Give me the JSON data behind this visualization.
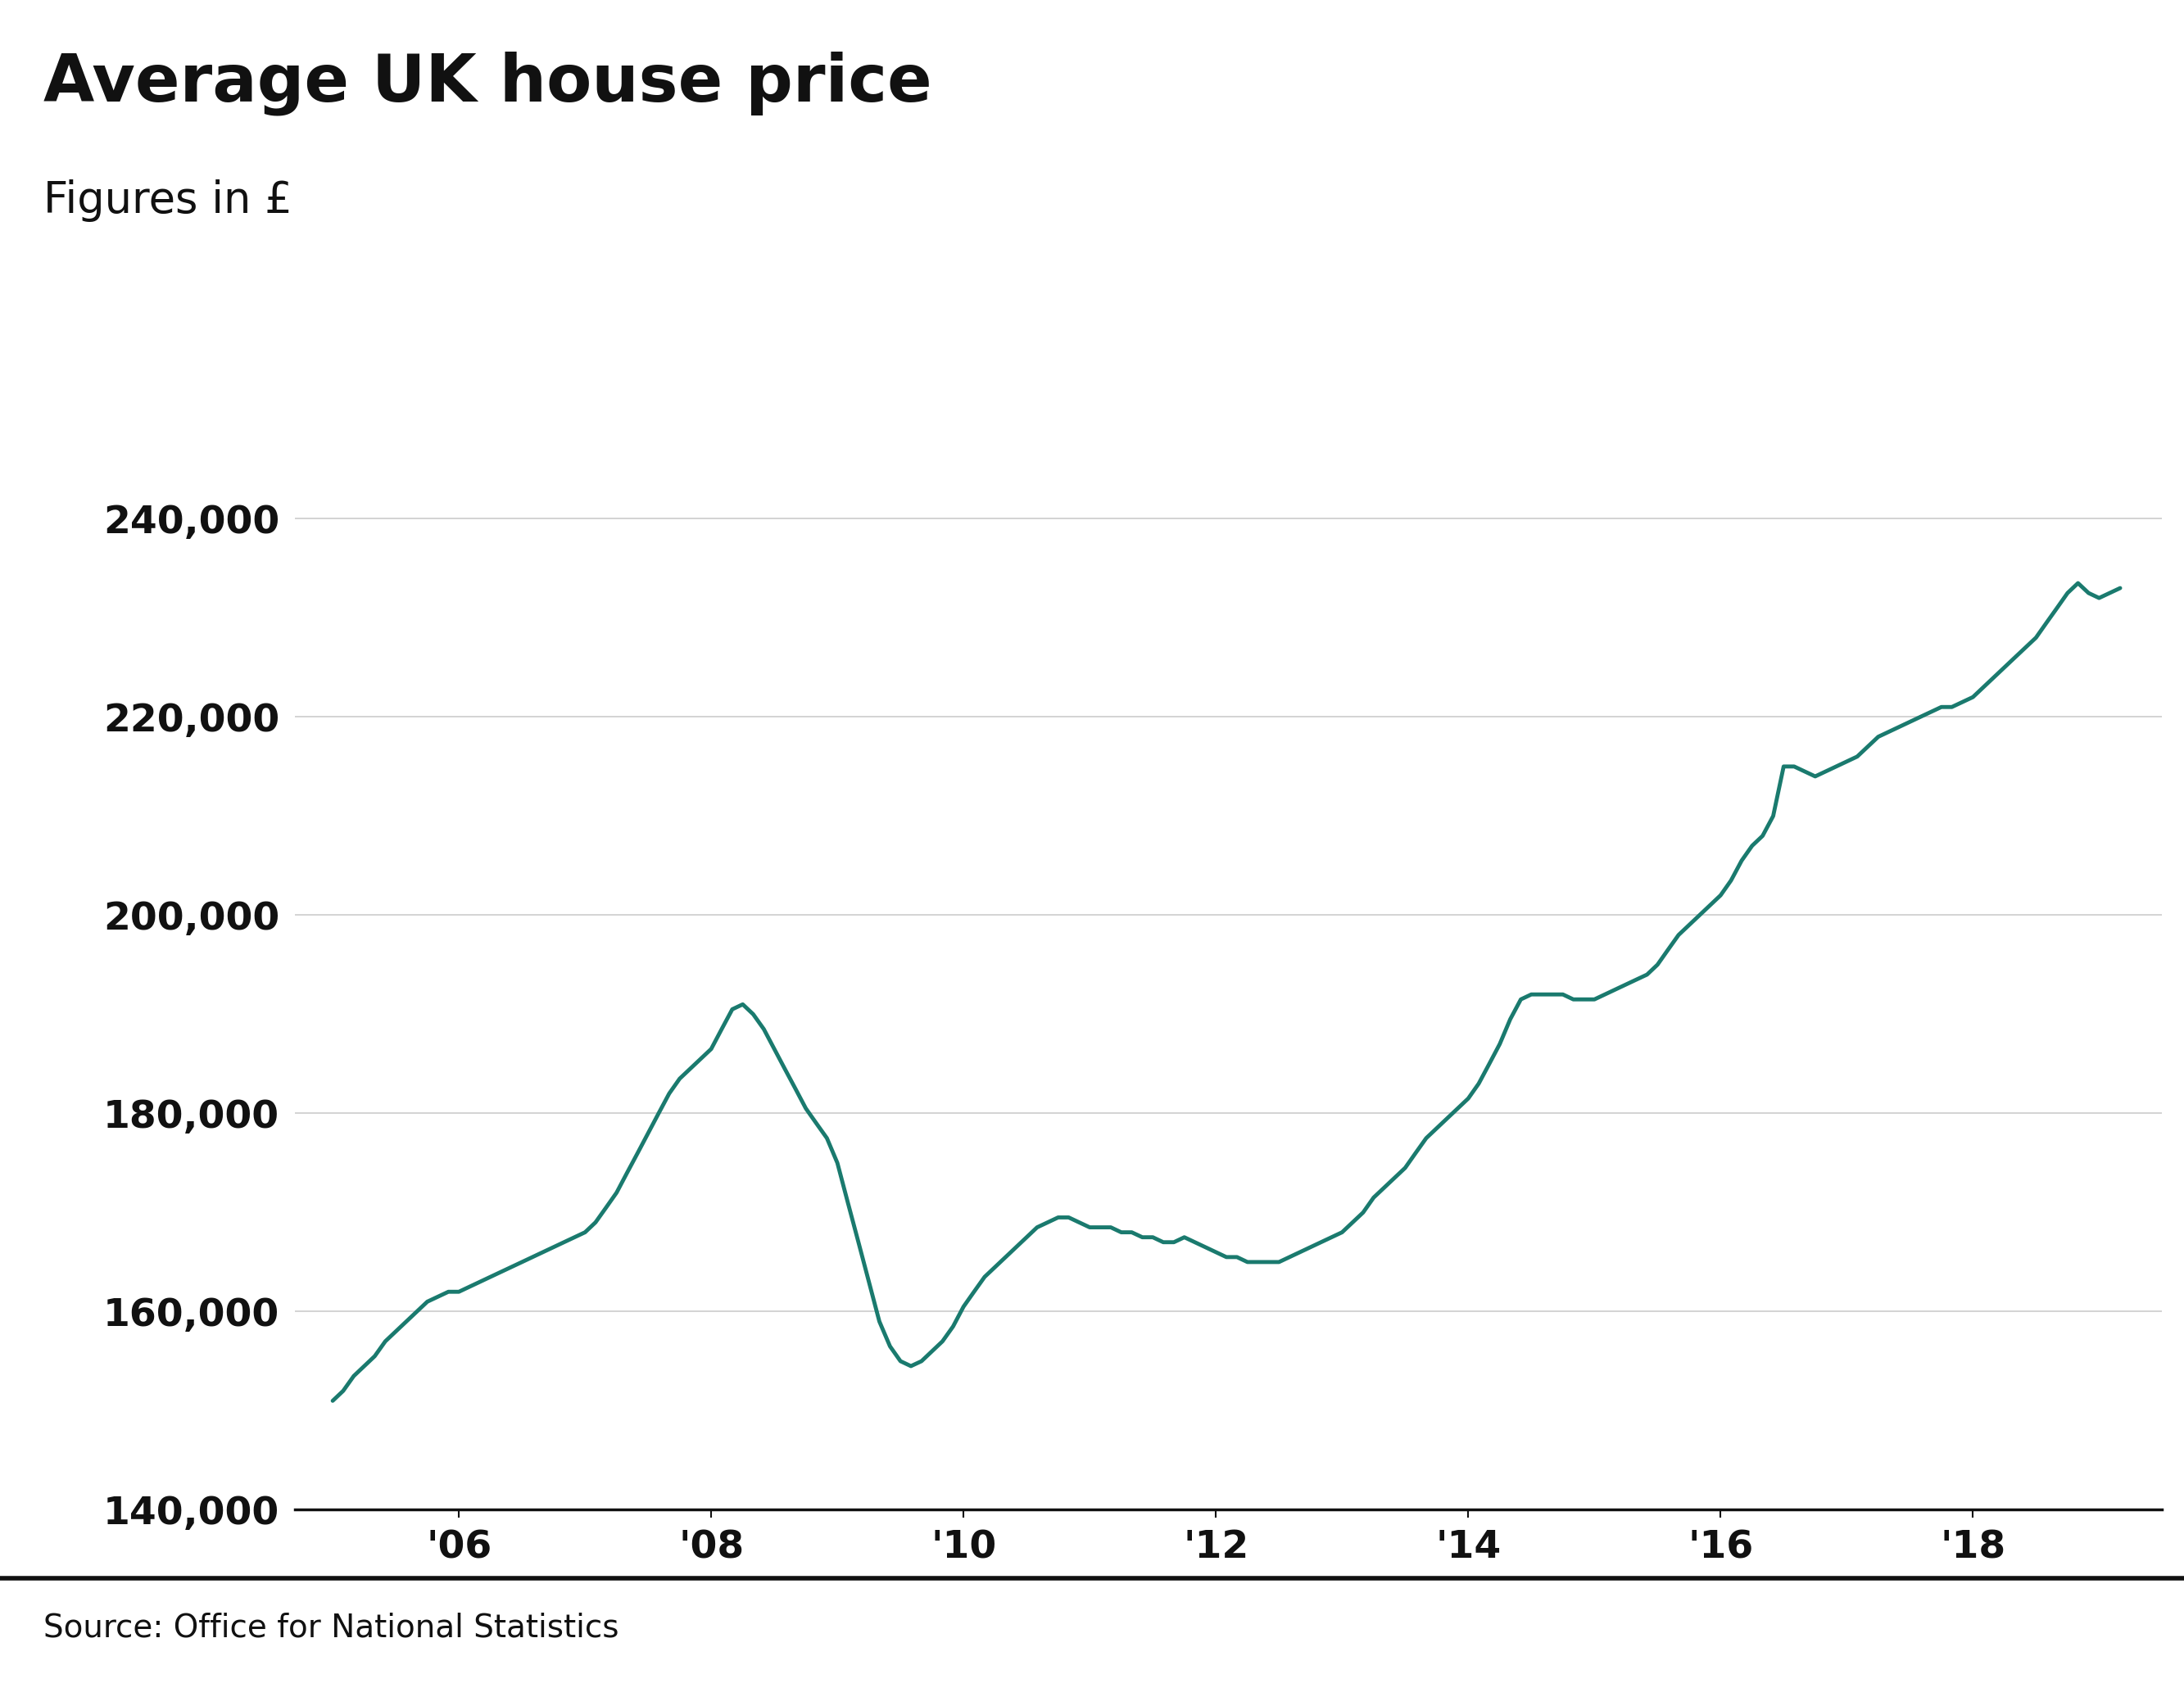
{
  "title": "Average UK house price",
  "subtitle": "Figures in £",
  "line_color": "#1a7a6e",
  "background_color": "#ffffff",
  "source_text": "Source: Office for National Statistics",
  "ylim": [
    140000,
    245000
  ],
  "yticks": [
    140000,
    160000,
    180000,
    200000,
    220000,
    240000
  ],
  "ytick_labels": [
    "140,000",
    "160,000",
    "180,000",
    "200,000",
    "220,000",
    "240,000"
  ],
  "xtick_labels": [
    "'06",
    "'08",
    "'10",
    "'12",
    "'14",
    "'16",
    "'18"
  ],
  "title_fontsize": 58,
  "subtitle_fontsize": 38,
  "tick_fontsize": 34,
  "source_fontsize": 28,
  "line_width": 3.5,
  "grid_color": "#cccccc",
  "axis_color": "#111111",
  "dates": [
    2005.0,
    2005.083,
    2005.167,
    2005.25,
    2005.333,
    2005.417,
    2005.5,
    2005.583,
    2005.667,
    2005.75,
    2005.833,
    2005.917,
    2006.0,
    2006.083,
    2006.167,
    2006.25,
    2006.333,
    2006.417,
    2006.5,
    2006.583,
    2006.667,
    2006.75,
    2006.833,
    2006.917,
    2007.0,
    2007.083,
    2007.167,
    2007.25,
    2007.333,
    2007.417,
    2007.5,
    2007.583,
    2007.667,
    2007.75,
    2007.833,
    2007.917,
    2008.0,
    2008.083,
    2008.167,
    2008.25,
    2008.333,
    2008.417,
    2008.5,
    2008.583,
    2008.667,
    2008.75,
    2008.833,
    2008.917,
    2009.0,
    2009.083,
    2009.167,
    2009.25,
    2009.333,
    2009.417,
    2009.5,
    2009.583,
    2009.667,
    2009.75,
    2009.833,
    2009.917,
    2010.0,
    2010.083,
    2010.167,
    2010.25,
    2010.333,
    2010.417,
    2010.5,
    2010.583,
    2010.667,
    2010.75,
    2010.833,
    2010.917,
    2011.0,
    2011.083,
    2011.167,
    2011.25,
    2011.333,
    2011.417,
    2011.5,
    2011.583,
    2011.667,
    2011.75,
    2011.833,
    2011.917,
    2012.0,
    2012.083,
    2012.167,
    2012.25,
    2012.333,
    2012.417,
    2012.5,
    2012.583,
    2012.667,
    2012.75,
    2012.833,
    2012.917,
    2013.0,
    2013.083,
    2013.167,
    2013.25,
    2013.333,
    2013.417,
    2013.5,
    2013.583,
    2013.667,
    2013.75,
    2013.833,
    2013.917,
    2014.0,
    2014.083,
    2014.167,
    2014.25,
    2014.333,
    2014.417,
    2014.5,
    2014.583,
    2014.667,
    2014.75,
    2014.833,
    2014.917,
    2015.0,
    2015.083,
    2015.167,
    2015.25,
    2015.333,
    2015.417,
    2015.5,
    2015.583,
    2015.667,
    2015.75,
    2015.833,
    2015.917,
    2016.0,
    2016.083,
    2016.167,
    2016.25,
    2016.333,
    2016.417,
    2016.5,
    2016.583,
    2016.667,
    2016.75,
    2016.833,
    2016.917,
    2017.0,
    2017.083,
    2017.167,
    2017.25,
    2017.333,
    2017.417,
    2017.5,
    2017.583,
    2017.667,
    2017.75,
    2017.833,
    2017.917,
    2018.0,
    2018.083,
    2018.167,
    2018.25,
    2018.333,
    2018.417,
    2018.5,
    2018.583,
    2018.667,
    2018.75,
    2018.833,
    2018.917,
    2019.0,
    2019.083,
    2019.167
  ],
  "values": [
    151000,
    152000,
    153500,
    154500,
    155500,
    157000,
    158000,
    159000,
    160000,
    161000,
    161500,
    162000,
    162000,
    162500,
    163000,
    163500,
    164000,
    164500,
    165000,
    165500,
    166000,
    166500,
    167000,
    167500,
    168000,
    169000,
    170500,
    172000,
    174000,
    176000,
    178000,
    180000,
    182000,
    183500,
    184500,
    185500,
    186500,
    188500,
    190500,
    191000,
    190000,
    188500,
    186500,
    184500,
    182500,
    180500,
    179000,
    177500,
    175000,
    171000,
    167000,
    163000,
    159000,
    156500,
    155000,
    154500,
    155000,
    156000,
    157000,
    158500,
    160500,
    162000,
    163500,
    164500,
    165500,
    166500,
    167500,
    168500,
    169000,
    169500,
    169500,
    169000,
    168500,
    168500,
    168500,
    168000,
    168000,
    167500,
    167500,
    167000,
    167000,
    167500,
    167000,
    166500,
    166000,
    165500,
    165500,
    165000,
    165000,
    165000,
    165000,
    165500,
    166000,
    166500,
    167000,
    167500,
    168000,
    169000,
    170000,
    171500,
    172500,
    173500,
    174500,
    176000,
    177500,
    178500,
    179500,
    180500,
    181500,
    183000,
    185000,
    187000,
    189500,
    191500,
    192000,
    192000,
    192000,
    192000,
    191500,
    191500,
    191500,
    192000,
    192500,
    193000,
    193500,
    194000,
    195000,
    196500,
    198000,
    199000,
    200000,
    201000,
    202000,
    203500,
    205500,
    207000,
    208000,
    210000,
    215000,
    215000,
    214500,
    214000,
    214500,
    215000,
    215500,
    216000,
    217000,
    218000,
    218500,
    219000,
    219500,
    220000,
    220500,
    221000,
    221000,
    221500,
    222000,
    223000,
    224000,
    225000,
    226000,
    227000,
    228000,
    229500,
    231000,
    232500,
    233500,
    232500,
    232000,
    232500,
    233000
  ]
}
